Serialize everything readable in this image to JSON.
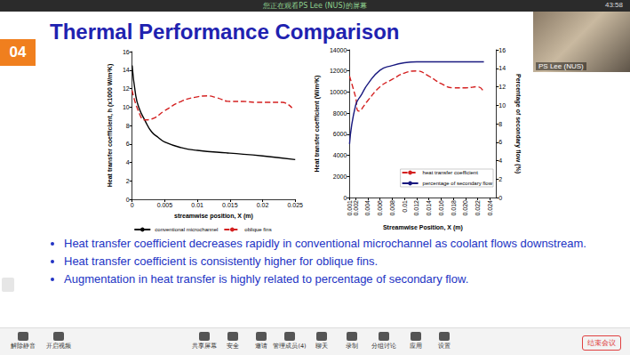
{
  "screen": {
    "banner": "您正在观看PS Lee (NUS)的屏幕",
    "clock": "43:58",
    "participant": "PS Lee (NUS)",
    "toolbar": [
      "解除静音",
      "开启视频",
      "共享屏幕",
      "安全",
      "邀请",
      "管理成员(4)",
      "聊天",
      "录制",
      "分组讨论",
      "应用",
      "设置"
    ],
    "end_button": "结束会议"
  },
  "slide": {
    "number": "04",
    "title": "Thermal Performance Comparison",
    "bullets": [
      "Heat transfer coefficient decreases rapidly in conventional microchannel as coolant flows downstream.",
      "Heat transfer coefficient is consistently higher for oblique fins.",
      "Augmentation in heat transfer is highly related to percentage of secondary flow."
    ]
  },
  "chart_data": [
    {
      "type": "line",
      "xlabel": "streamwise position, X (m)",
      "ylabel": "Heat transfer coefficient, h (x1000 W/m²K)",
      "xlim": [
        0,
        0.025
      ],
      "xticks": [
        0,
        0.005,
        0.01,
        0.015,
        0.02,
        0.025
      ],
      "ylim": [
        0,
        16
      ],
      "yticks": [
        0,
        2,
        4,
        6,
        8,
        10,
        12,
        14,
        16
      ],
      "legend": "bottom",
      "series": [
        {
          "name": "conventional microchannel",
          "color": "#000000",
          "line_style": "solid",
          "x": [
            0,
            0.0005,
            0.001,
            0.002,
            0.003,
            0.004,
            0.005,
            0.0075,
            0.01,
            0.015,
            0.02,
            0.025
          ],
          "values": [
            14.5,
            11.5,
            10,
            8.5,
            7.3,
            6.7,
            6.2,
            5.6,
            5.3,
            5.0,
            4.7,
            4.3
          ]
        },
        {
          "name": "oblique fins",
          "color": "#d42020",
          "line_style": "dashed",
          "x": [
            0,
            0.001,
            0.002,
            0.003,
            0.005,
            0.0075,
            0.01,
            0.0115,
            0.013,
            0.015,
            0.017,
            0.019,
            0.021,
            0.023,
            0.0245
          ],
          "values": [
            11.8,
            9.5,
            8.6,
            8.7,
            9.6,
            10.6,
            11.1,
            11.2,
            11.0,
            10.6,
            10.6,
            10.5,
            10.5,
            10.5,
            9.9
          ]
        }
      ]
    },
    {
      "type": "line",
      "xlabel": "Streamwise Position, X (m)",
      "ylabel": "Heat transfer coefficient (W/m²K)",
      "y2label": "Percentage of secondary flow (%)",
      "xlim": [
        0.001,
        0.025
      ],
      "xticks": [
        0.001,
        0.002,
        0.004,
        0.006,
        0.008,
        0.01,
        0.012,
        0.014,
        0.016,
        0.018,
        {
          "value": 0.02,
          "label": "0.020"
        },
        0.022,
        0.024
      ],
      "ylim": [
        0,
        14000
      ],
      "yticks": [
        0,
        2000,
        4000,
        6000,
        8000,
        10000,
        12000,
        14000
      ],
      "y2lim": [
        0,
        16
      ],
      "y2ticks": [
        0,
        2,
        4,
        6,
        8,
        10,
        12,
        14,
        16
      ],
      "legend": "lower right",
      "series": [
        {
          "name": "heat transfer coefficient",
          "color": "#d42020",
          "line_style": "dashed",
          "x": [
            0.001,
            0.002,
            0.0025,
            0.004,
            0.006,
            0.008,
            0.01,
            0.012,
            0.014,
            0.016,
            0.018,
            0.02,
            0.022,
            0.023
          ],
          "values": [
            11500,
            9500,
            8200,
            9200,
            10500,
            11200,
            11800,
            12000,
            11500,
            10800,
            10400,
            10400,
            10500,
            10000
          ]
        },
        {
          "name": "percentage of secondary flow",
          "color": "#1a1a80",
          "line_style": "solid",
          "axis": "y2",
          "x": [
            0.001,
            0.002,
            0.003,
            0.004,
            0.006,
            0.008,
            0.01,
            0.012,
            0.014,
            0.016,
            0.018,
            0.02,
            0.022,
            0.023
          ],
          "values": [
            5.8,
            10,
            11.2,
            12.3,
            13.8,
            14.3,
            14.6,
            14.7,
            14.7,
            14.7,
            14.7,
            14.7,
            14.7,
            14.7
          ]
        }
      ]
    }
  ]
}
